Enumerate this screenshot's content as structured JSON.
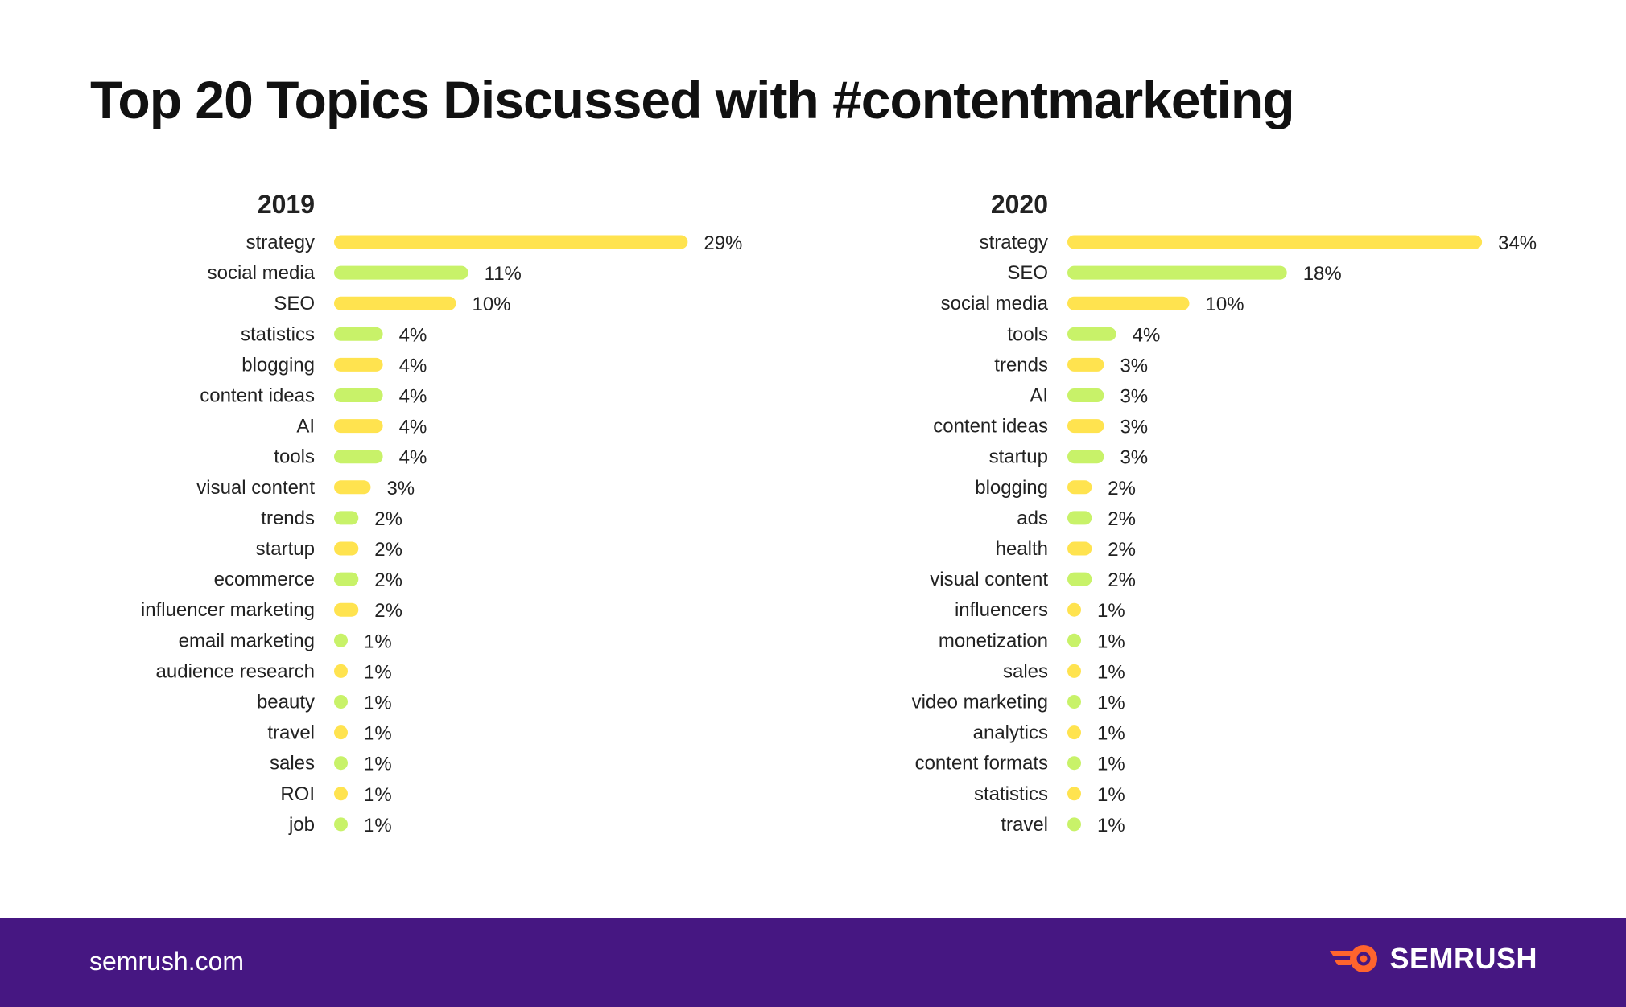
{
  "title": "Top 20 Topics Discussed with #contentmarketing",
  "footer": {
    "url": "semrush.com",
    "brand": "SEMRUSH"
  },
  "colors": {
    "yellow": "#FFE34F",
    "green": "#C8F269",
    "footer_bg": "#461782",
    "logo_orange": "#FF642D"
  },
  "chart_data": [
    {
      "type": "bar",
      "orientation": "horizontal",
      "title": "2019",
      "unit": "%",
      "xlim": [
        0,
        34
      ],
      "categories": [
        "strategy",
        "social media",
        "SEO",
        "statistics",
        "blogging",
        "content ideas",
        "AI",
        "tools",
        "visual content",
        "trends",
        "startup",
        "ecommerce",
        "influencer marketing",
        "email marketing",
        "audience research",
        "beauty",
        "travel",
        "sales",
        "ROI",
        "job"
      ],
      "values": [
        29,
        11,
        10,
        4,
        4,
        4,
        4,
        4,
        3,
        2,
        2,
        2,
        2,
        1,
        1,
        1,
        1,
        1,
        1,
        1
      ],
      "labels": [
        "29%",
        "11%",
        "10%",
        "4%",
        "4%",
        "4%",
        "4%",
        "4%",
        "3%",
        "2%",
        "2%",
        "2%",
        "2%",
        "1%",
        "1%",
        "1%",
        "1%",
        "1%",
        "1%",
        "1%"
      ],
      "colors": [
        "yellow",
        "green",
        "yellow",
        "green",
        "yellow",
        "green",
        "yellow",
        "green",
        "yellow",
        "green",
        "yellow",
        "green",
        "yellow",
        "green",
        "yellow",
        "green",
        "yellow",
        "green",
        "yellow",
        "green"
      ]
    },
    {
      "type": "bar",
      "orientation": "horizontal",
      "title": "2020",
      "unit": "%",
      "xlim": [
        0,
        34
      ],
      "categories": [
        "strategy",
        "SEO",
        "social media",
        "tools",
        "trends",
        "AI",
        "content ideas",
        "startup",
        "blogging",
        "ads",
        "health",
        "visual content",
        "influencers",
        "monetization",
        "sales",
        "video marketing",
        "analytics",
        "content formats",
        "statistics",
        "travel"
      ],
      "values": [
        34,
        18,
        10,
        4,
        3,
        3,
        3,
        3,
        2,
        2,
        2,
        2,
        1,
        1,
        1,
        1,
        1,
        1,
        1,
        1
      ],
      "labels": [
        "34%",
        "18%",
        "10%",
        "4%",
        "3%",
        "3%",
        "3%",
        "3%",
        "2%",
        "2%",
        "2%",
        "2%",
        "1%",
        "1%",
        "1%",
        "1%",
        "1%",
        "1%",
        "1%",
        "1%"
      ],
      "colors": [
        "yellow",
        "green",
        "yellow",
        "green",
        "yellow",
        "green",
        "yellow",
        "green",
        "yellow",
        "green",
        "yellow",
        "green",
        "yellow",
        "green",
        "yellow",
        "green",
        "yellow",
        "green",
        "yellow",
        "green"
      ]
    }
  ]
}
